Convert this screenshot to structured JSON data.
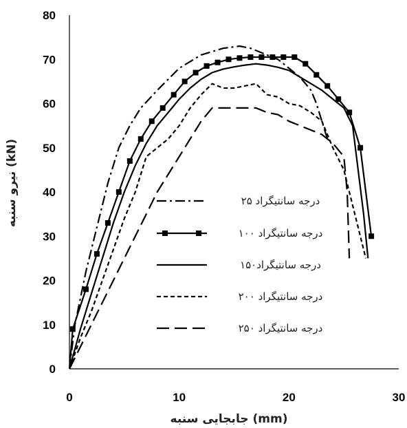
{
  "chart_data": {
    "type": "line",
    "xlabel": "جابجایی سنبه (mm)",
    "ylabel": "نیرو سنبه (kN)",
    "xlim": [
      0,
      30
    ],
    "ylim": [
      0,
      80
    ],
    "xticks": [
      "0",
      "10",
      "20",
      "30"
    ],
    "yticks": [
      "0",
      "10",
      "20",
      "30",
      "40",
      "50",
      "60",
      "70",
      "80"
    ],
    "grid": false,
    "legend_position": "center",
    "series": [
      {
        "name": "۲۵ درجه سانتیگراد",
        "style": "dash-dot",
        "color": "#000000",
        "x": [
          0,
          0.5,
          1.5,
          2.5,
          3.5,
          4.5,
          5.5,
          6.5,
          8,
          10,
          12,
          14,
          15.5,
          16.5,
          17.5,
          19,
          20,
          21,
          22,
          22.5,
          23,
          23.5
        ],
        "y": [
          0,
          10,
          22,
          32,
          42,
          50,
          55,
          59,
          63,
          68,
          71,
          72.5,
          73,
          72.5,
          71.5,
          70,
          68,
          66,
          63,
          60,
          56,
          52
        ]
      },
      {
        "name": "۱۰۰ درجه سانتیگراد",
        "style": "solid-square-markers",
        "color": "#000000",
        "x": [
          0,
          0.3,
          1.5,
          2.5,
          3.5,
          4.5,
          5.5,
          6.5,
          7.5,
          8.5,
          9.5,
          10.5,
          11.5,
          12.5,
          13.5,
          14.5,
          15.5,
          16.5,
          17.5,
          18.5,
          19.5,
          20.5,
          21.5,
          22.5,
          23.5,
          24.5,
          25.5,
          26.5,
          27.5
        ],
        "y": [
          0,
          9,
          18,
          26,
          33,
          40,
          47,
          52,
          56,
          59,
          62,
          65,
          67,
          68.5,
          69.3,
          70,
          70.3,
          70.5,
          70.5,
          70.5,
          70.5,
          70.5,
          69,
          66.5,
          64,
          61,
          58,
          50,
          30
        ]
      },
      {
        "name": "۱۵۰درجه سانتیگراد",
        "style": "solid",
        "color": "#000000",
        "x": [
          0,
          1,
          2,
          3,
          4,
          5,
          6,
          7,
          8,
          9,
          10,
          11,
          12,
          13,
          14,
          15,
          16,
          17,
          18,
          19,
          20,
          21,
          22,
          23,
          24,
          25,
          25.8,
          26.3,
          26.8,
          27.2
        ],
        "y": [
          0,
          9,
          17,
          25,
          33,
          40,
          46,
          51,
          55,
          58,
          61,
          63.5,
          65.5,
          67,
          67.8,
          68.3,
          68.7,
          69,
          68.7,
          68.2,
          67.5,
          66,
          64.5,
          63,
          61,
          59,
          55,
          45,
          35,
          25
        ]
      },
      {
        "name": "۲۰۰ درجه سانتیگراد",
        "style": "short-dash",
        "color": "#000000",
        "x": [
          0,
          1,
          2,
          3,
          4,
          5,
          6,
          7,
          8,
          9,
          10,
          11,
          12,
          13,
          14,
          15,
          16,
          17,
          18,
          19,
          20,
          21,
          22,
          23,
          24,
          25,
          25.5,
          26,
          26.5,
          27
        ],
        "y": [
          0,
          7,
          13,
          20,
          27,
          34,
          40,
          48,
          50,
          52,
          55,
          59,
          62,
          64.5,
          63.5,
          63.5,
          64,
          64.5,
          62,
          61.5,
          60,
          59.5,
          58,
          56,
          50,
          45,
          40,
          35,
          30,
          25
        ]
      },
      {
        "name": "۲۵۰ درجه سانتیگراد",
        "style": "long-dash",
        "color": "#000000",
        "x": [
          0,
          1,
          2,
          3,
          4,
          5,
          6,
          7,
          8,
          9,
          10,
          11,
          12,
          13,
          14,
          15,
          16,
          17,
          18,
          19,
          20,
          21,
          22,
          23,
          24,
          25,
          25.3,
          25.5
        ],
        "y": [
          0,
          5,
          10,
          15,
          20,
          25,
          30,
          35,
          40,
          44,
          48,
          52,
          56,
          59,
          59,
          59,
          59,
          59,
          58,
          57.5,
          56,
          55,
          54,
          53,
          51,
          48,
          40,
          25
        ]
      }
    ]
  }
}
